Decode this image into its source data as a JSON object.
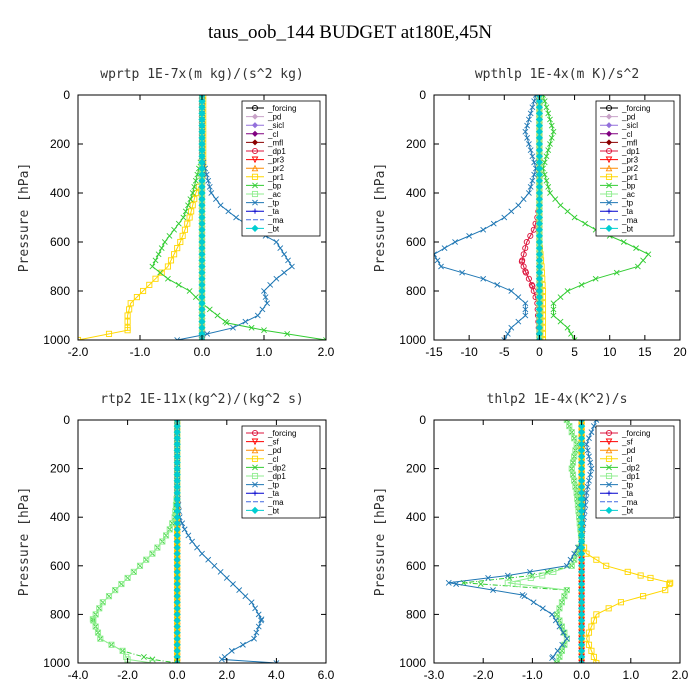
{
  "title": "taus_oob_144  BUDGET at180E,45N",
  "chart_data": [
    {
      "type": "line",
      "title": "wprtp  1E-7x(m kg)/(s^2 kg)",
      "ylabel": "Pressure [hPa]",
      "xlim": [
        -2.0,
        2.0
      ],
      "ylim": [
        1000,
        0
      ],
      "xticks": [
        -2.0,
        -1.0,
        0.0,
        1.0,
        2.0
      ],
      "xtick_labels": [
        "-2.0",
        "-1.0",
        "0.0",
        "1.0",
        "2.0"
      ],
      "yticks": [
        0,
        200,
        400,
        600,
        800,
        1000
      ],
      "legend": "top-right",
      "series": [
        {
          "name": "_forcing",
          "color": "#000000",
          "marker": "o",
          "x": [
            0,
            0
          ],
          "y": [
            0,
            1000
          ]
        },
        {
          "name": "_pd",
          "color": "#c8a2c8",
          "marker": "d",
          "x": [
            0,
            0
          ],
          "y": [
            0,
            1000
          ]
        },
        {
          "name": "_sicl",
          "color": "#9370db",
          "marker": "d",
          "x": [
            0,
            0
          ],
          "y": [
            0,
            1000
          ]
        },
        {
          "name": "_cl",
          "color": "#800080",
          "marker": "d",
          "x": [
            0,
            0
          ],
          "y": [
            0,
            1000
          ]
        },
        {
          "name": "_mfl",
          "color": "#8b0000",
          "marker": "d",
          "x": [
            0,
            0
          ],
          "y": [
            0,
            1000
          ]
        },
        {
          "name": "_dp1",
          "color": "#dc143c",
          "marker": "o",
          "x": [
            0,
            0
          ],
          "y": [
            0,
            1000
          ]
        },
        {
          "name": "_pr3",
          "color": "#ff0000",
          "marker": "v",
          "x": [
            0,
            0
          ],
          "y": [
            0,
            1000
          ]
        },
        {
          "name": "_pr2",
          "color": "#ff8c00",
          "marker": "^",
          "x": [
            0,
            0
          ],
          "y": [
            0,
            1000
          ]
        },
        {
          "name": "_pr1",
          "color": "#ffd700",
          "marker": "s",
          "x": [
            0.02,
            0.02,
            0,
            -0.1,
            -0.2,
            -0.35,
            -0.55,
            -0.75,
            -0.95,
            -1.15,
            -1.2,
            -1.2,
            -2.0
          ],
          "y": [
            0,
            300,
            350,
            400,
            500,
            600,
            700,
            750,
            800,
            850,
            900,
            960,
            1000
          ]
        },
        {
          "name": "_bp",
          "color": "#32cd32",
          "marker": "x",
          "x": [
            0,
            0,
            -0.05,
            -0.15,
            -0.3,
            -0.6,
            -0.8,
            -0.55,
            -0.2,
            0,
            0.4,
            1.0,
            2.0
          ],
          "y": [
            0,
            250,
            300,
            400,
            500,
            600,
            700,
            750,
            800,
            850,
            930,
            960,
            1000
          ]
        },
        {
          "name": "_ac",
          "color": "#90ee90",
          "marker": "s",
          "x": [
            0,
            0
          ],
          "y": [
            0,
            1000
          ]
        },
        {
          "name": "_tp",
          "color": "#1f77b4",
          "marker": "x",
          "x": [
            0,
            0,
            0.05,
            0.15,
            0.3,
            0.55,
            0.85,
            1.2,
            1.45,
            1.2,
            1.0,
            1.05,
            0.9,
            0.5,
            0,
            -0.4
          ],
          "y": [
            0,
            250,
            300,
            400,
            450,
            500,
            550,
            600,
            700,
            750,
            800,
            850,
            900,
            950,
            980,
            1000
          ]
        },
        {
          "name": "_ta",
          "color": "#0000cd",
          "marker": "+",
          "x": [
            0,
            0
          ],
          "y": [
            0,
            1000
          ]
        },
        {
          "name": "_ma",
          "color": "#4169e1",
          "marker": "none",
          "x": [
            0,
            0
          ],
          "y": [
            0,
            1000
          ]
        },
        {
          "name": "_bt",
          "color": "#00ced1",
          "marker": "D",
          "x": [
            0,
            0
          ],
          "y": [
            0,
            1000
          ]
        }
      ]
    },
    {
      "type": "line",
      "title": "wpthlp  1E-4x(m K)/s^2",
      "ylabel": "Pressure [hPa]",
      "xlim": [
        -15,
        20
      ],
      "ylim": [
        1000,
        0
      ],
      "xticks": [
        -15,
        -10,
        -5,
        0,
        5,
        10,
        15,
        20
      ],
      "xtick_labels": [
        "-15",
        "-10",
        "-5",
        "0",
        "5",
        "10",
        "15",
        "20"
      ],
      "yticks": [
        0,
        200,
        400,
        600,
        800,
        1000
      ],
      "legend": "top-right",
      "series": [
        {
          "name": "_forcing",
          "color": "#000000",
          "marker": "o",
          "x": [
            0,
            0
          ],
          "y": [
            0,
            1000
          ]
        },
        {
          "name": "_pd",
          "color": "#c8a2c8",
          "marker": "d",
          "x": [
            0,
            0
          ],
          "y": [
            0,
            1000
          ]
        },
        {
          "name": "_sicl",
          "color": "#9370db",
          "marker": "d",
          "x": [
            0,
            0
          ],
          "y": [
            0,
            1000
          ]
        },
        {
          "name": "_cl",
          "color": "#800080",
          "marker": "d",
          "x": [
            0,
            0
          ],
          "y": [
            0,
            1000
          ]
        },
        {
          "name": "_mfl",
          "color": "#8b0000",
          "marker": "d",
          "x": [
            0,
            0
          ],
          "y": [
            0,
            1000
          ]
        },
        {
          "name": "_dp1",
          "color": "#dc143c",
          "marker": "o",
          "x": [
            0,
            0,
            -0.3,
            -0.8,
            -1.8,
            -2.5,
            -2.0,
            -1.0,
            -0.3,
            0
          ],
          "y": [
            0,
            450,
            500,
            550,
            600,
            680,
            720,
            780,
            850,
            1000
          ]
        },
        {
          "name": "_pr3",
          "color": "#ff0000",
          "marker": "v",
          "x": [
            0,
            0
          ],
          "y": [
            0,
            1000
          ]
        },
        {
          "name": "_pr2",
          "color": "#ff8c00",
          "marker": "^",
          "x": [
            0,
            0
          ],
          "y": [
            0,
            1000
          ]
        },
        {
          "name": "_pr1",
          "color": "#ffd700",
          "marker": "s",
          "x": [
            0,
            0,
            0.3,
            0.5,
            0.5,
            0.5
          ],
          "y": [
            0,
            600,
            700,
            800,
            900,
            1000
          ]
        },
        {
          "name": "_bp",
          "color": "#32cd32",
          "marker": "x",
          "x": [
            0.5,
            1.5,
            2.0,
            1.5,
            1.0,
            0.5,
            1.5,
            3.0,
            5.0,
            8.0,
            12.0,
            15.5,
            14.0,
            8.0,
            4.0,
            2.0,
            2.0,
            4.0,
            5.0
          ],
          "y": [
            0,
            100,
            150,
            200,
            250,
            300,
            400,
            450,
            500,
            550,
            600,
            650,
            700,
            750,
            800,
            850,
            900,
            950,
            1000
          ]
        },
        {
          "name": "_ac",
          "color": "#90ee90",
          "marker": "s",
          "x": [
            0,
            0
          ],
          "y": [
            0,
            1000
          ]
        },
        {
          "name": "_tp",
          "color": "#1f77b4",
          "marker": "x",
          "x": [
            -0.5,
            -1.5,
            -2.0,
            -1.5,
            -1.0,
            -0.5,
            -1.5,
            -3.0,
            -5.0,
            -8.0,
            -12.0,
            -15.0,
            -14.0,
            -8.0,
            -4.0,
            -2.0,
            -2.0,
            -4.0,
            -5.0
          ],
          "y": [
            0,
            100,
            150,
            200,
            250,
            300,
            400,
            450,
            500,
            550,
            600,
            650,
            700,
            750,
            800,
            850,
            900,
            950,
            1000
          ]
        },
        {
          "name": "_ta",
          "color": "#0000cd",
          "marker": "+",
          "x": [
            0,
            0
          ],
          "y": [
            0,
            1000
          ]
        },
        {
          "name": "_ma",
          "color": "#4169e1",
          "marker": "none",
          "x": [
            0,
            0
          ],
          "y": [
            0,
            1000
          ]
        },
        {
          "name": "_bt",
          "color": "#00ced1",
          "marker": "D",
          "x": [
            0,
            0
          ],
          "y": [
            0,
            1000
          ]
        }
      ]
    },
    {
      "type": "line",
      "title": "rtp2  1E-11x(kg^2)/(kg^2 s)",
      "ylabel": "Pressure [hPa]",
      "xlim": [
        -4.0,
        6.0
      ],
      "ylim": [
        1000,
        0
      ],
      "xticks": [
        -4.0,
        -2.0,
        0.0,
        2.0,
        4.0,
        6.0
      ],
      "xtick_labels": [
        "-4.0",
        "-2.0",
        "0.0",
        "2.0",
        "4.0",
        "6.0"
      ],
      "yticks": [
        0,
        200,
        400,
        600,
        800,
        1000
      ],
      "legend": "top-right",
      "series": [
        {
          "name": "_forcing",
          "color": "#dc143c",
          "marker": "o",
          "x": [
            0,
            0
          ],
          "y": [
            0,
            1000
          ]
        },
        {
          "name": "_sf",
          "color": "#ff0000",
          "marker": "v",
          "x": [
            0,
            0
          ],
          "y": [
            0,
            1000
          ]
        },
        {
          "name": "_pd",
          "color": "#ff8c00",
          "marker": "^",
          "x": [
            0,
            0
          ],
          "y": [
            0,
            1000
          ]
        },
        {
          "name": "_cl",
          "color": "#ffd700",
          "marker": "s",
          "x": [
            0,
            0
          ],
          "y": [
            0,
            1000
          ]
        },
        {
          "name": "_dp2",
          "color": "#32cd32",
          "marker": "x",
          "x": [
            0,
            0,
            -0.1,
            -0.3,
            -0.6,
            -1.0,
            -1.5,
            -2.0,
            -2.5,
            -3.0,
            -3.4,
            -3.1,
            -2.2,
            -1.0,
            0
          ],
          "y": [
            0,
            300,
            400,
            450,
            500,
            550,
            600,
            650,
            700,
            750,
            820,
            900,
            950,
            985,
            1000
          ]
        },
        {
          "name": "_dp1",
          "color": "#90ee90",
          "marker": "s",
          "x": [
            0,
            0,
            -0.1,
            -0.3,
            -0.6,
            -1.0,
            -1.5,
            -2.0,
            -2.5,
            -3.0,
            -3.4,
            -3.1,
            -2.2,
            -2.0,
            -1.0
          ],
          "y": [
            0,
            300,
            400,
            450,
            500,
            550,
            600,
            650,
            700,
            750,
            820,
            900,
            950,
            985,
            1000
          ]
        },
        {
          "name": "_tp",
          "color": "#1f77b4",
          "marker": "x",
          "x": [
            0,
            0,
            0.1,
            0.3,
            0.6,
            1.0,
            1.5,
            2.0,
            2.5,
            3.0,
            3.4,
            3.1,
            2.2,
            1.8,
            4.0
          ],
          "y": [
            0,
            300,
            400,
            450,
            500,
            550,
            600,
            650,
            700,
            750,
            820,
            900,
            950,
            985,
            1000
          ]
        },
        {
          "name": "_ta",
          "color": "#0000cd",
          "marker": "+",
          "x": [
            0,
            0
          ],
          "y": [
            0,
            1000
          ]
        },
        {
          "name": "_ma",
          "color": "#4169e1",
          "marker": "none",
          "x": [
            0,
            0
          ],
          "y": [
            0,
            1000
          ]
        },
        {
          "name": "_bt",
          "color": "#00ced1",
          "marker": "D",
          "x": [
            0,
            0
          ],
          "y": [
            0,
            1000
          ]
        }
      ]
    },
    {
      "type": "line",
      "title": "thlp2  1E-4x(K^2)/s",
      "ylabel": "Pressure [hPa]",
      "xlim": [
        -3.0,
        2.0
      ],
      "ylim": [
        1000,
        0
      ],
      "xticks": [
        -3.0,
        -2.0,
        -1.0,
        0.0,
        1.0,
        2.0
      ],
      "xtick_labels": [
        "-3.0",
        "-2.0",
        "-1.0",
        "0.0",
        "1.0",
        "2.0"
      ],
      "yticks": [
        0,
        200,
        400,
        600,
        800,
        1000
      ],
      "legend": "top-right",
      "series": [
        {
          "name": "_forcing",
          "color": "#dc143c",
          "marker": "o",
          "x": [
            0,
            0
          ],
          "y": [
            0,
            1000
          ]
        },
        {
          "name": "_sf",
          "color": "#ff0000",
          "marker": "v",
          "x": [
            0,
            0
          ],
          "y": [
            0,
            1000
          ]
        },
        {
          "name": "_pd",
          "color": "#ff8c00",
          "marker": "^",
          "x": [
            0,
            0
          ],
          "y": [
            0,
            1000
          ]
        },
        {
          "name": "_cl",
          "color": "#ffd700",
          "marker": "s",
          "x": [
            0,
            0,
            0.1,
            0.5,
            1.2,
            1.8,
            1.7,
            0.8,
            0.3,
            0.1,
            0.3
          ],
          "y": [
            0,
            500,
            550,
            600,
            640,
            670,
            700,
            750,
            800,
            900,
            1000
          ]
        },
        {
          "name": "_dp2",
          "color": "#32cd32",
          "marker": "x",
          "x": [
            -0.3,
            -0.1,
            -0.2,
            -0.1,
            0,
            -0.2,
            -1.0,
            -2.4,
            -0.3,
            -0.5,
            -0.3,
            -0.5
          ],
          "y": [
            0,
            100,
            200,
            300,
            500,
            600,
            640,
            670,
            700,
            800,
            900,
            1000
          ]
        },
        {
          "name": "_dp1",
          "color": "#90ee90",
          "marker": "s",
          "x": [
            -0.3,
            -0.1,
            -0.2,
            -0.1,
            0,
            -0.2,
            -0.8,
            -1.5,
            -0.3,
            -0.5,
            -0.3,
            -0.5
          ],
          "y": [
            0,
            100,
            200,
            300,
            500,
            600,
            640,
            670,
            700,
            800,
            900,
            1000
          ]
        },
        {
          "name": "_tp",
          "color": "#1f77b4",
          "marker": "x",
          "x": [
            0.3,
            0.1,
            0.2,
            0.1,
            0,
            -0.3,
            -1.5,
            -2.7,
            -1.2,
            -0.6,
            -0.3,
            -0.6
          ],
          "y": [
            0,
            100,
            200,
            300,
            500,
            600,
            640,
            670,
            720,
            800,
            900,
            980
          ]
        },
        {
          "name": "_ta",
          "color": "#0000cd",
          "marker": "+",
          "x": [
            0,
            0
          ],
          "y": [
            0,
            1000
          ]
        },
        {
          "name": "_ma",
          "color": "#4169e1",
          "marker": "none",
          "x": [
            0,
            0
          ],
          "y": [
            0,
            1000
          ]
        },
        {
          "name": "_bt",
          "color": "#00ced1",
          "marker": "D",
          "x": [
            0,
            0
          ],
          "y": [
            0,
            1000
          ]
        }
      ]
    }
  ]
}
